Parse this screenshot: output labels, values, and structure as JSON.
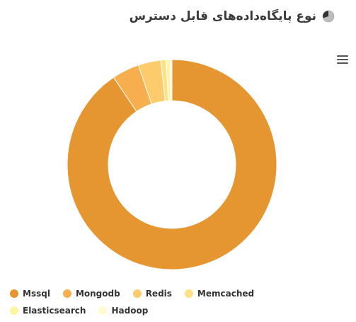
{
  "header": {
    "title": "نوع پایگاه‌داده‌های قابل دسترس",
    "icon": "pie-chart-icon"
  },
  "menu": {
    "icon": "hamburger-menu-icon"
  },
  "chart_data": {
    "type": "pie",
    "variant": "donut",
    "title": "نوع پایگاه‌داده‌های قابل دسترس",
    "legend_position": "bottom",
    "series": [
      {
        "name": "Mssql",
        "value": 90.6,
        "color": "#E59630"
      },
      {
        "name": "Mongodb",
        "value": 4.2,
        "color": "#F6AE4F"
      },
      {
        "name": "Redis",
        "value": 3.5,
        "color": "#FCCB6B"
      },
      {
        "name": "Memcached",
        "value": 0.8,
        "color": "#FEE085"
      },
      {
        "name": "Elasticsearch",
        "value": 0.6,
        "color": "#FFF4A2"
      },
      {
        "name": "Hadoop",
        "value": 0.3,
        "color": "#FFFBD0"
      }
    ]
  }
}
